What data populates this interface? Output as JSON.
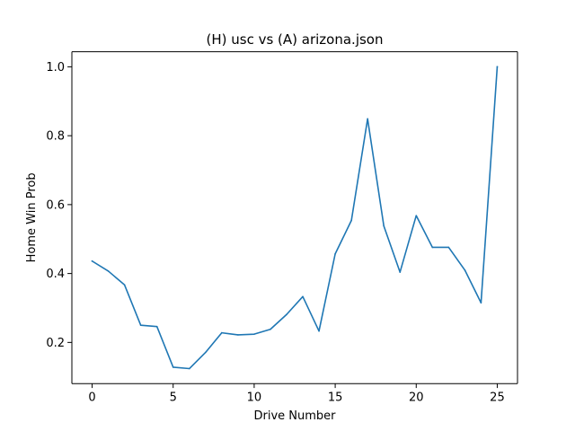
{
  "chart_data": {
    "type": "line",
    "title": "(H) usc vs (A) arizona.json",
    "xlabel": "Drive Number",
    "ylabel": "Home Win Prob",
    "xlim": [
      -1.25,
      26.25
    ],
    "ylim": [
      0.0805,
      1.0438
    ],
    "x_ticks": [
      0,
      5,
      10,
      15,
      20,
      25
    ],
    "x_tick_labels": [
      "0",
      "5",
      "10",
      "15",
      "20",
      "25"
    ],
    "y_ticks": [
      0.2,
      0.4,
      0.6,
      0.8,
      1.0
    ],
    "y_tick_labels": [
      "0.2",
      "0.4",
      "0.6",
      "0.8",
      "1.0"
    ],
    "grid": false,
    "series": [
      {
        "color": "#1f77b4",
        "x": [
          0,
          1,
          2,
          3,
          4,
          5,
          6,
          7,
          8,
          9,
          10,
          11,
          12,
          13,
          14,
          15,
          16,
          17,
          18,
          19,
          20,
          21,
          22,
          23,
          24,
          25
        ],
        "values": [
          0.436,
          0.407,
          0.367,
          0.25,
          0.246,
          0.128,
          0.124,
          0.171,
          0.228,
          0.222,
          0.224,
          0.238,
          0.281,
          0.333,
          0.233,
          0.457,
          0.554,
          0.849,
          0.538,
          0.404,
          0.568,
          0.476,
          0.476,
          0.41,
          0.315,
          1.0
        ]
      }
    ]
  }
}
